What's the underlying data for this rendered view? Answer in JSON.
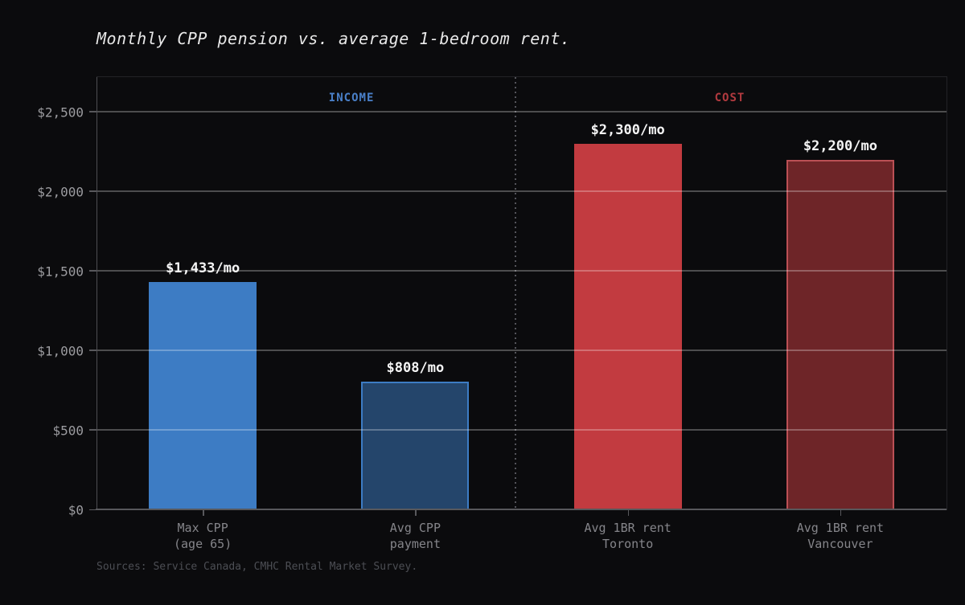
{
  "chart_data": {
    "type": "bar",
    "title": "Monthly CPP pension vs. average 1-bedroom rent.",
    "xlabel": "",
    "ylabel": "",
    "categories": [
      "Max CPP\n(age 65)",
      "Avg CPP\npayment",
      "Avg 1BR rent\nToronto",
      "Avg 1BR rent\nVancouver"
    ],
    "values": [
      1433,
      808,
      2300,
      2200
    ],
    "bar_value_labels": [
      "$1,433/mo",
      "$808/mo",
      "$2,300/mo",
      "$2,200/mo"
    ],
    "bar_fill_colors": [
      "#3d7cc4",
      "#24456b",
      "#c23b40",
      "#6e2528"
    ],
    "bar_border_colors": [
      "#3d7cc4",
      "#3d7cc4",
      "#c23b40",
      "#bb5055"
    ],
    "ytick_labels": [
      "$0",
      "$500",
      "$1,000",
      "$1,500",
      "$2,000",
      "$2,500"
    ],
    "ytick_values": [
      0,
      500,
      1000,
      1500,
      2000,
      2500
    ],
    "ylim": [
      0,
      2720
    ],
    "grid": true,
    "legend": false,
    "sections": [
      {
        "label": "INCOME",
        "color": "#4a80c9"
      },
      {
        "label": "COST",
        "color": "#b23a3f"
      }
    ],
    "source": "Sources: Service Canada, CMHC Rental Market Survey."
  }
}
